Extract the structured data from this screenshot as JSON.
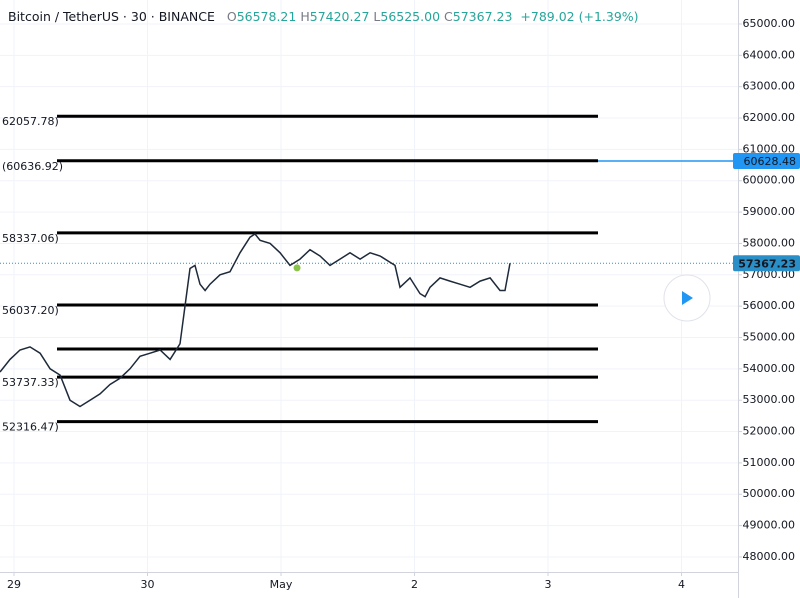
{
  "chart_data": {
    "type": "line",
    "header": {
      "symbol": "Bitcoin / TetherUS · 30 · BINANCE",
      "ohlc": [
        {
          "key": "O",
          "text": "56578.21"
        },
        {
          "key": "H",
          "text": "57420.27"
        },
        {
          "key": "L",
          "text": "56525.00"
        },
        {
          "key": "C",
          "text": "57367.23"
        }
      ],
      "change": "+789.02 (+1.39%)"
    },
    "x": [
      -0.105,
      -0.03,
      0.045,
      0.12,
      0.195,
      0.27,
      0.345,
      0.419,
      0.494,
      0.569,
      0.644,
      0.719,
      0.794,
      0.869,
      0.944,
      1.019,
      1.094,
      1.169,
      1.243,
      1.281,
      1.318,
      1.356,
      1.393,
      1.431,
      1.468,
      1.543,
      1.618,
      1.693,
      1.768,
      1.805,
      1.843,
      1.918,
      1.993,
      2.067,
      2.142,
      2.217,
      2.292,
      2.367,
      2.442,
      2.517,
      2.592,
      2.667,
      2.742,
      2.816,
      2.854,
      2.891,
      2.966,
      3.041,
      3.079,
      3.116,
      3.191,
      3.266,
      3.341,
      3.416,
      3.491,
      3.566,
      3.64,
      3.678,
      3.715
    ],
    "series": [
      {
        "color": "#1e2a3a",
        "values": [
          53900,
          54300,
          54600,
          54700,
          54500,
          54000,
          53800,
          53000,
          52800,
          53000,
          53200,
          53500,
          53700,
          54000,
          54400,
          54500,
          54600,
          54300,
          54800,
          56000,
          57200,
          57300,
          56700,
          56500,
          56700,
          57000,
          57100,
          57700,
          58200,
          58300,
          58100,
          58000,
          57700,
          57300,
          57500,
          57800,
          57600,
          57300,
          57500,
          57700,
          57500,
          57700,
          57600,
          57400,
          57300,
          56600,
          56900,
          56400,
          56300,
          56600,
          56900,
          56800,
          56700,
          56600,
          56800,
          56900,
          56500,
          56500,
          57367.23
        ]
      }
    ],
    "marker": {
      "x": 2.12,
      "y": 57220,
      "color": "#8bc34a"
    },
    "levels": [
      {
        "value": 62057.78,
        "label": "62057.78)"
      },
      {
        "value": 60636.92,
        "label": "(60636.92)"
      },
      {
        "value": 58337.06,
        "label": "58337.06)"
      },
      {
        "value": 56037.2,
        "label": "56037.20)"
      },
      {
        "value": 54633
      },
      {
        "value": 53737.33,
        "label": "53737.33)"
      },
      {
        "value": 52316.47,
        "label": "52316.47)"
      }
    ],
    "alert_price": {
      "value": 60628.48,
      "color": "#2196f3"
    },
    "last_price": {
      "value": 57367.23,
      "color": "#2a8fc7"
    },
    "xlim": [
      -0.105,
      5.423
    ],
    "ylim": [
      47520,
      65765
    ],
    "xticks": [
      {
        "value": 0,
        "label": "29"
      },
      {
        "value": 1,
        "label": "30"
      },
      {
        "value": 2,
        "label": "May"
      },
      {
        "value": 3,
        "label": "2"
      },
      {
        "value": 4,
        "label": "3"
      },
      {
        "value": 5,
        "label": "4"
      }
    ],
    "yticks": [
      {
        "value": 48000,
        "label": "48000.00"
      },
      {
        "value": 49000,
        "label": "49000.00"
      },
      {
        "value": 50000,
        "label": "50000.00"
      },
      {
        "value": 51000,
        "label": "51000.00"
      },
      {
        "value": 52000,
        "label": "52000.00"
      },
      {
        "value": 53000,
        "label": "53000.00"
      },
      {
        "value": 54000,
        "label": "54000.00"
      },
      {
        "value": 55000,
        "label": "55000.00"
      },
      {
        "value": 56000,
        "label": "56000.00"
      },
      {
        "value": 57000,
        "label": "57000.00"
      },
      {
        "value": 58000,
        "label": "58000.00"
      },
      {
        "value": 59000,
        "label": "59000.00"
      },
      {
        "value": 60000,
        "label": "60000.00"
      },
      {
        "value": 61000,
        "label": "61000.00"
      },
      {
        "value": 62000,
        "label": "62000.00"
      },
      {
        "value": 63000,
        "label": "63000.00"
      },
      {
        "value": 64000,
        "label": "64000.00"
      },
      {
        "value": 65000,
        "label": "65000.00"
      }
    ],
    "grid": true
  }
}
